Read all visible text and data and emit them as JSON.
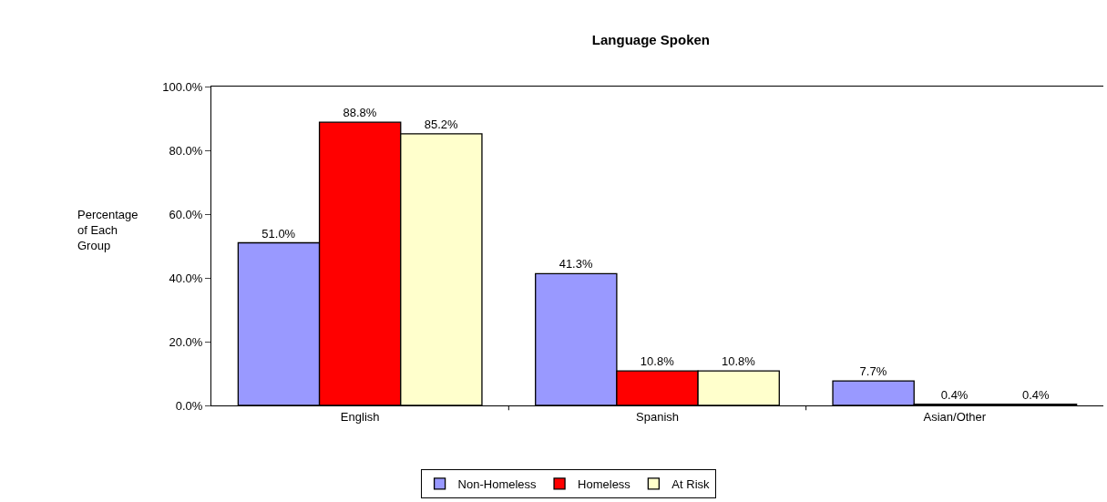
{
  "chart_data": {
    "type": "bar",
    "title": "Language Spoken",
    "ylabel": "Percentage of Each Group",
    "categories": [
      "English",
      "Spanish",
      "Asian/Other"
    ],
    "series": [
      {
        "name": "Non-Homeless",
        "color": "#9999ff",
        "values": [
          51.0,
          41.3,
          7.7
        ],
        "value_labels": [
          "51.0%",
          "41.3%",
          "7.7%"
        ]
      },
      {
        "name": "Homeless",
        "color": "#ff0000",
        "values": [
          88.8,
          10.8,
          0.4
        ],
        "value_labels": [
          "88.8%",
          "10.8%",
          "0.4%"
        ]
      },
      {
        "name": "At Risk",
        "color": "#ffffcc",
        "values": [
          85.2,
          10.8,
          0.4
        ],
        "value_labels": [
          "85.2%",
          "10.8%",
          "0.4%"
        ]
      }
    ],
    "ylim": [
      0,
      100
    ],
    "yticks": [
      {
        "value": 0,
        "label": "0.0%"
      },
      {
        "value": 20,
        "label": "20.0%"
      },
      {
        "value": 40,
        "label": "40.0%"
      },
      {
        "value": 60,
        "label": "60.0%"
      },
      {
        "value": 80,
        "label": "80.0%"
      },
      {
        "value": 100,
        "label": "100.0%"
      }
    ],
    "grid": false,
    "legend": "bottom"
  }
}
